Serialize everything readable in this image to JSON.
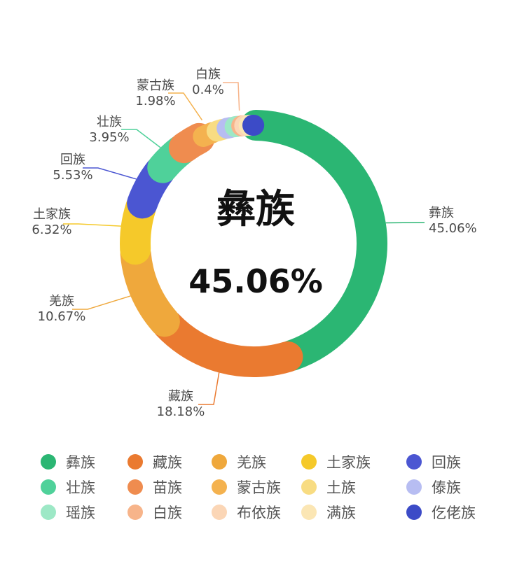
{
  "chart_data": {
    "type": "pie",
    "center_label": "彝族",
    "center_value": "45.06%",
    "slices": [
      {
        "name": "彝族",
        "value": 45.06,
        "label": "45.06%",
        "color": "#2bb673",
        "show_label": true
      },
      {
        "name": "藏族",
        "value": 18.18,
        "label": "18.18%",
        "color": "#ea7a30",
        "show_label": true
      },
      {
        "name": "羌族",
        "value": 10.67,
        "label": "10.67%",
        "color": "#efa83c",
        "show_label": true
      },
      {
        "name": "土家族",
        "value": 6.32,
        "label": "6.32%",
        "color": "#f5c92a",
        "show_label": true
      },
      {
        "name": "回族",
        "value": 5.53,
        "label": "5.53%",
        "color": "#4b56d2",
        "show_label": true
      },
      {
        "name": "壮族",
        "value": 3.95,
        "label": "3.95%",
        "color": "#4fd19a",
        "show_label": true
      },
      {
        "name": "苗族",
        "value": 3.0,
        "label": "",
        "color": "#ef8c4f",
        "show_label": false
      },
      {
        "name": "蒙古族",
        "value": 1.98,
        "label": "1.98%",
        "color": "#f4b24f",
        "show_label": true
      },
      {
        "name": "土族",
        "value": 1.4,
        "label": "",
        "color": "#f8dc82",
        "show_label": false
      },
      {
        "name": "傣族",
        "value": 1.1,
        "label": "",
        "color": "#b7bdf2",
        "show_label": false
      },
      {
        "name": "瑶族",
        "value": 0.9,
        "label": "",
        "color": "#9de8c6",
        "show_label": false
      },
      {
        "name": "白族",
        "value": 0.4,
        "label": "0.4%",
        "color": "#f7b48a",
        "show_label": true
      },
      {
        "name": "布依族",
        "value": 0.6,
        "label": "",
        "color": "#fbd6b6",
        "show_label": false
      },
      {
        "name": "满族",
        "value": 0.5,
        "label": "",
        "color": "#fbe6b4",
        "show_label": false
      },
      {
        "name": "仡佬族",
        "value": 0.4,
        "label": "",
        "color": "#3c4bc7",
        "show_label": false
      }
    ],
    "legend": [
      "彝族",
      "藏族",
      "羌族",
      "土家族",
      "回族",
      "壮族",
      "苗族",
      "蒙古族",
      "土族",
      "傣族",
      "瑶族",
      "白族",
      "布依族",
      "满族",
      "仡佬族"
    ],
    "legend_position": "bottom"
  }
}
